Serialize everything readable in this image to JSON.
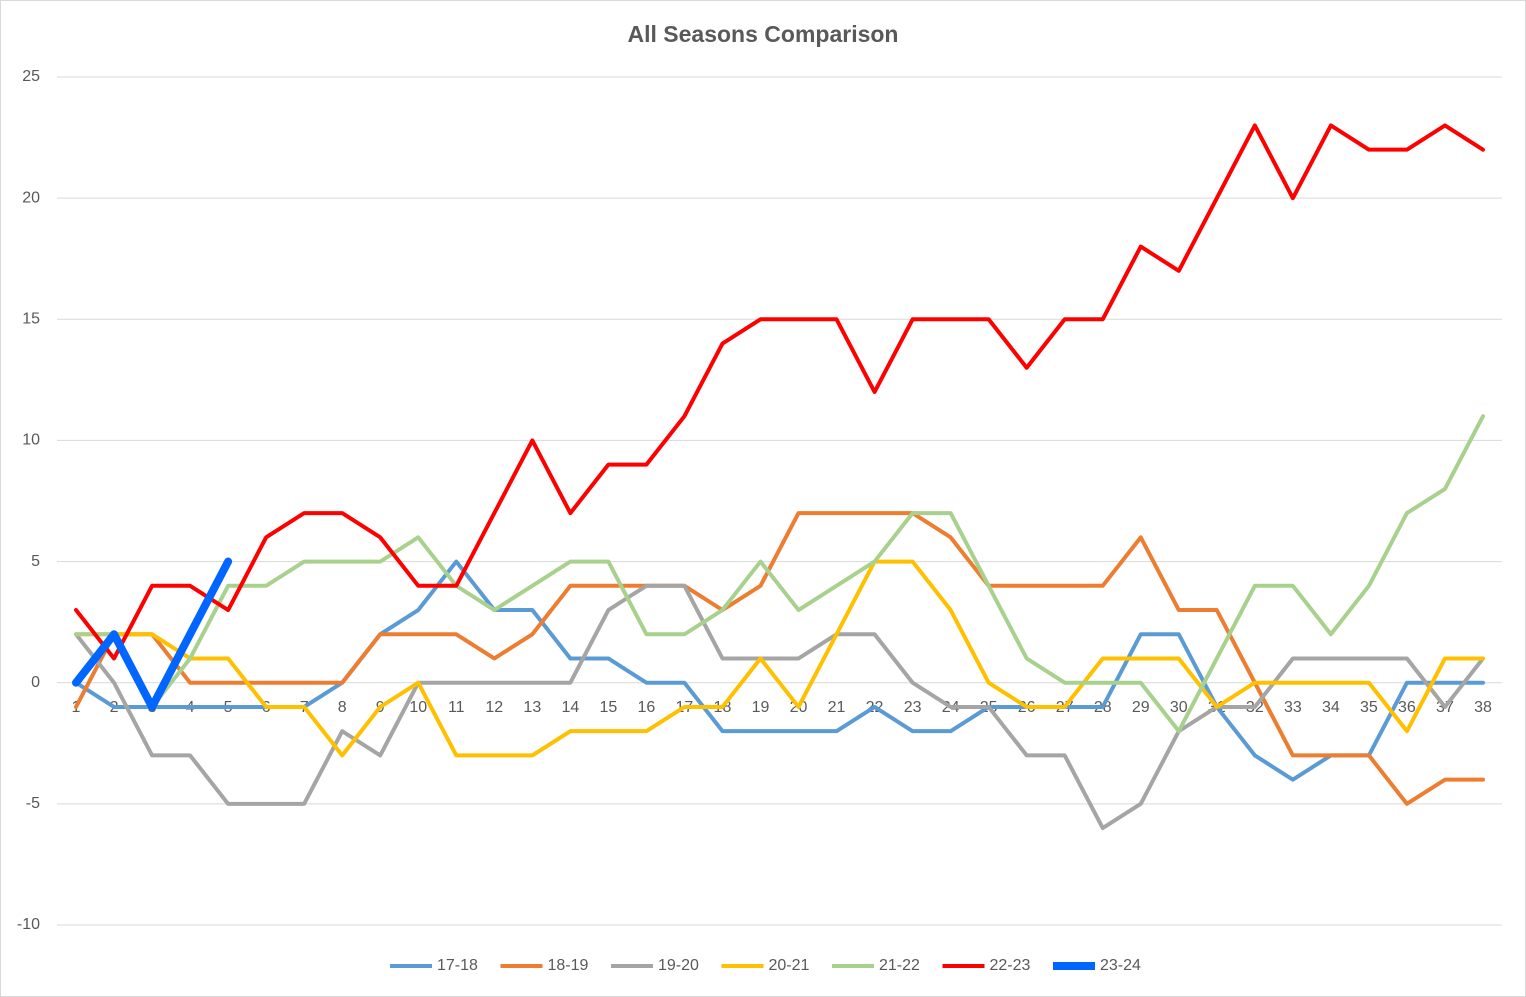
{
  "chart_data": {
    "type": "line",
    "title": "All Seasons Comparison",
    "categories": [
      "1",
      "2",
      "3",
      "4",
      "5",
      "6",
      "7",
      "8",
      "9",
      "10",
      "11",
      "12",
      "13",
      "14",
      "15",
      "16",
      "17",
      "18",
      "19",
      "20",
      "21",
      "22",
      "23",
      "24",
      "25",
      "26",
      "27",
      "28",
      "29",
      "30",
      "31",
      "32",
      "33",
      "34",
      "35",
      "36",
      "37",
      "38"
    ],
    "ylim": [
      -10,
      25
    ],
    "yticks": [
      -10,
      -5,
      0,
      5,
      10,
      15,
      20,
      25
    ],
    "grid": true,
    "legend": "bottom",
    "series": [
      {
        "name": "17-18",
        "color": "#5b9bd5",
        "values": [
          0,
          -1,
          -1,
          -1,
          -1,
          -1,
          -1,
          0,
          2,
          3,
          5,
          3,
          3,
          1,
          1,
          0,
          0,
          -2,
          -2,
          -2,
          -2,
          -1,
          -2,
          -2,
          -1,
          -1,
          -1,
          -1,
          2,
          2,
          -1,
          -3,
          -4,
          -3,
          -3,
          0,
          0,
          0
        ]
      },
      {
        "name": "18-19",
        "color": "#ed7d31",
        "values": [
          -1,
          2,
          2,
          0,
          0,
          0,
          0,
          0,
          2,
          2,
          2,
          1,
          2,
          4,
          4,
          4,
          4,
          3,
          4,
          7,
          7,
          7,
          7,
          6,
          4,
          4,
          4,
          4,
          6,
          3,
          3,
          0,
          -3,
          -3,
          -3,
          -5,
          -4,
          -4
        ]
      },
      {
        "name": "19-20",
        "color": "#a5a5a5",
        "values": [
          2,
          0,
          -3,
          -3,
          -5,
          -5,
          -5,
          -2,
          -3,
          0,
          0,
          0,
          0,
          0,
          3,
          4,
          4,
          1,
          1,
          1,
          2,
          2,
          0,
          -1,
          -1,
          -3,
          -3,
          -6,
          -5,
          -2,
          -1,
          -1,
          1,
          1,
          1,
          1,
          -1,
          1
        ]
      },
      {
        "name": "20-21",
        "color": "#ffc000",
        "values": [
          2,
          2,
          2,
          1,
          1,
          -1,
          -1,
          -3,
          -1,
          0,
          -3,
          -3,
          -3,
          -2,
          -2,
          -2,
          -1,
          -1,
          1,
          -1,
          2,
          5,
          5,
          3,
          0,
          -1,
          -1,
          1,
          1,
          1,
          -1,
          0,
          0,
          0,
          0,
          -2,
          1,
          1
        ]
      },
      {
        "name": "21-22",
        "color": "#a9d18e",
        "values": [
          2,
          2,
          -1,
          1,
          4,
          4,
          5,
          5,
          5,
          6,
          4,
          3,
          4,
          5,
          5,
          2,
          2,
          3,
          5,
          3,
          4,
          5,
          7,
          7,
          4,
          1,
          0,
          0,
          0,
          -2,
          1,
          4,
          4,
          2,
          4,
          7,
          8,
          11
        ]
      },
      {
        "name": "22-23",
        "color": "#ff0000",
        "values": [
          3,
          1,
          4,
          4,
          3,
          6,
          7,
          7,
          6,
          4,
          4,
          7,
          10,
          7,
          9,
          9,
          11,
          14,
          15,
          15,
          15,
          12,
          15,
          15,
          15,
          13,
          15,
          15,
          18,
          17,
          20,
          23,
          20,
          23,
          22,
          22,
          23,
          22
        ]
      },
      {
        "name": "23-24",
        "color": "#0066ff",
        "values": [
          0,
          2,
          -1,
          2,
          5,
          null,
          null,
          null,
          null,
          null,
          null,
          null,
          null,
          null,
          null,
          null,
          null,
          null,
          null,
          null,
          null,
          null,
          null,
          null,
          null,
          null,
          null,
          null,
          null,
          null,
          null,
          null,
          null,
          null,
          null,
          null,
          null,
          null
        ]
      }
    ]
  }
}
